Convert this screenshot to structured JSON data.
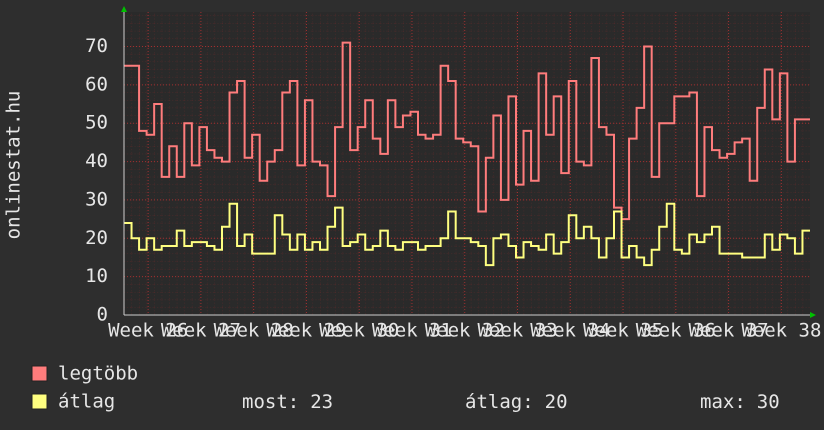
{
  "chart_data": {
    "type": "line",
    "step": true,
    "ylabel": "onlinestat.hu",
    "x": [
      0,
      1,
      2,
      3,
      4,
      5,
      6,
      7,
      8,
      9,
      10,
      11,
      12,
      13,
      14,
      15,
      16,
      17,
      18,
      19,
      20,
      21,
      22,
      23,
      24,
      25,
      26,
      27,
      28,
      29,
      30,
      31,
      32,
      33,
      34,
      35,
      36,
      37,
      38,
      39,
      40,
      41,
      42,
      43,
      44,
      45,
      46,
      47,
      48,
      49,
      50,
      51,
      52,
      53,
      54,
      55,
      56,
      57,
      58,
      59,
      60,
      61,
      62,
      63,
      64,
      65,
      66,
      67,
      68,
      69,
      70,
      71,
      72,
      73,
      74,
      75,
      76,
      77,
      78,
      79,
      80,
      81,
      82,
      83,
      84,
      85,
      86,
      87,
      88,
      89,
      90
    ],
    "xlim": [
      0,
      91
    ],
    "xticks": [
      {
        "value": 3.2,
        "label": "Week 26"
      },
      {
        "value": 10.2,
        "label": "Week 27"
      },
      {
        "value": 17.2,
        "label": "Week 28"
      },
      {
        "value": 24.2,
        "label": "Week 29"
      },
      {
        "value": 31.2,
        "label": "Week 30"
      },
      {
        "value": 38.2,
        "label": "Week 31"
      },
      {
        "value": 45.2,
        "label": "Week 32"
      },
      {
        "value": 52.2,
        "label": "Week 33"
      },
      {
        "value": 59.2,
        "label": "Week 34"
      },
      {
        "value": 66.2,
        "label": "Week 35"
      },
      {
        "value": 73.2,
        "label": "Week 36"
      },
      {
        "value": 80.2,
        "label": "Week 37"
      },
      {
        "value": 87.2,
        "label": "Week 38"
      }
    ],
    "ylim": [
      0,
      79
    ],
    "yticks": [
      0,
      10,
      20,
      30,
      40,
      50,
      60,
      70
    ],
    "grid": true,
    "series": [
      {
        "name": "legtöbb",
        "color": "#ff7c7c",
        "values": [
          65,
          65,
          48,
          47,
          55,
          36,
          44,
          36,
          50,
          39,
          49,
          43,
          41,
          40,
          58,
          61,
          41,
          47,
          35,
          40,
          43,
          58,
          61,
          39,
          56,
          40,
          39,
          31,
          49,
          71,
          43,
          49,
          56,
          46,
          42,
          56,
          49,
          52,
          53,
          47,
          46,
          47,
          65,
          61,
          46,
          45,
          44,
          27,
          41,
          52,
          30,
          57,
          34,
          48,
          35,
          63,
          47,
          57,
          37,
          61,
          40,
          39,
          67,
          49,
          47,
          28,
          25,
          46,
          54,
          70,
          36,
          50,
          50,
          57,
          57,
          58,
          31,
          49,
          43,
          41,
          42,
          45,
          46,
          35,
          54,
          64,
          51,
          63,
          40,
          51,
          51
        ]
      },
      {
        "name": "átlag",
        "color": "#ffff80",
        "values": [
          24,
          20,
          17,
          20,
          17,
          18,
          18,
          22,
          18,
          19,
          19,
          18,
          17,
          23,
          29,
          18,
          21,
          16,
          16,
          16,
          26,
          21,
          17,
          21,
          17,
          19,
          17,
          23,
          28,
          18,
          19,
          21,
          17,
          18,
          22,
          18,
          17,
          19,
          19,
          17,
          18,
          18,
          20,
          27,
          20,
          20,
          19,
          18,
          13,
          20,
          21,
          18,
          15,
          19,
          18,
          17,
          21,
          16,
          19,
          26,
          20,
          23,
          20,
          15,
          20,
          27,
          15,
          18,
          15,
          13,
          17,
          23,
          29,
          17,
          16,
          21,
          19,
          21,
          23,
          16,
          16,
          16,
          15,
          15,
          15,
          21,
          17,
          21,
          20,
          16,
          22
        ]
      }
    ],
    "legend_stats": [
      {
        "label": "most:",
        "value": 23
      },
      {
        "label": "átlag:",
        "value": 20
      },
      {
        "label": "max:",
        "value": 30
      }
    ]
  }
}
